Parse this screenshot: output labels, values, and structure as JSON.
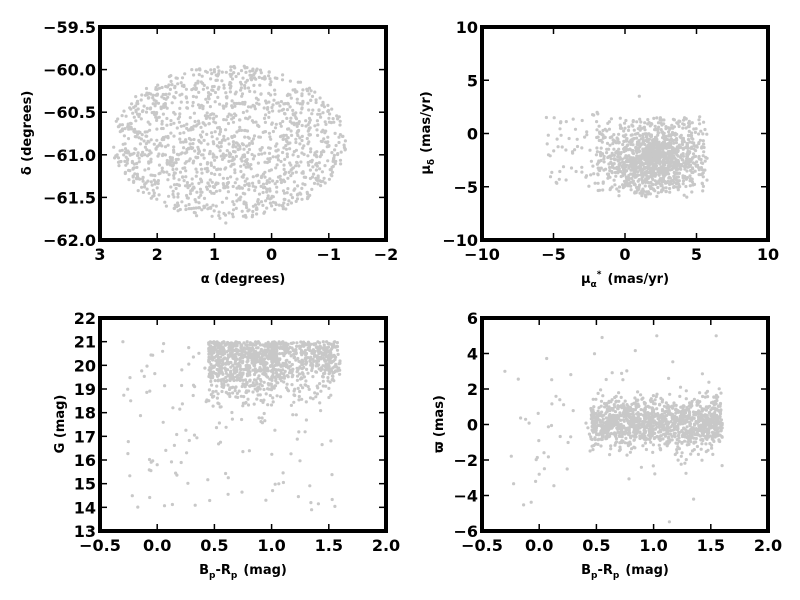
{
  "chart_data": [
    {
      "type": "scatter",
      "panel": "top-left",
      "xlabel": "α (degrees)",
      "ylabel": "δ (degrees)",
      "xlim": [
        3,
        -2
      ],
      "ylim": [
        -62.0,
        -59.5
      ],
      "xticks": [
        3,
        2,
        1,
        0,
        -1,
        -2
      ],
      "xticklabels": [
        "3",
        "2",
        "1",
        "0",
        "−1",
        "−2"
      ],
      "yticks": [
        -62.0,
        -61.5,
        -61.0,
        -60.5,
        -60.0,
        -59.5
      ],
      "yticklabels": [
        "−62.0",
        "−61.5",
        "−61.0",
        "−60.5",
        "−60.0",
        "−59.5"
      ],
      "grid": false,
      "point_color": "#c8c8c8",
      "distribution": {
        "shape": "ellipse",
        "center": [
          0.75,
          -60.85
        ],
        "radius": [
          2.05,
          0.9
        ],
        "n_points": 1400
      },
      "points": [
        [
          1.0,
          -60.0
        ],
        [
          0.5,
          -60.1
        ],
        [
          2.0,
          -60.3
        ],
        [
          -0.5,
          -60.4
        ],
        [
          2.5,
          -60.7
        ],
        [
          -1.0,
          -60.9
        ],
        [
          1.5,
          -61.6
        ],
        [
          0.0,
          -61.6
        ],
        [
          0.8,
          -61.8
        ],
        [
          -0.8,
          -61.3
        ],
        [
          2.7,
          -61.0
        ],
        [
          1.2,
          -61.0
        ]
      ]
    },
    {
      "type": "scatter",
      "panel": "top-right",
      "xlabel_main": "μ",
      "xlabel_sub": "α",
      "xlabel_sup": "*",
      "xlabel_rest": "(mas/yr)",
      "ylabel_main": "μ",
      "ylabel_sub": "δ",
      "ylabel_rest": "(mas/yr)",
      "xlim": [
        -10,
        10
      ],
      "ylim": [
        -10,
        10
      ],
      "xticks": [
        -10,
        -5,
        0,
        5,
        10
      ],
      "xticklabels": [
        "−10",
        "−5",
        "0",
        "5",
        "10"
      ],
      "yticks": [
        -10,
        -5,
        0,
        5,
        10
      ],
      "yticklabels": [
        "−10",
        "−5",
        "0",
        "5",
        "10"
      ],
      "grid": false,
      "point_color": "#c8c8c8",
      "distribution": {
        "shape": "cloud",
        "x_range": [
          -5.5,
          5.8
        ],
        "y_range": [
          -6,
          5
        ],
        "dense_center": [
          2.0,
          -2.5
        ],
        "n_points": 1300
      },
      "points": [
        [
          0.0,
          0.5
        ],
        [
          2.0,
          -2.5
        ],
        [
          4.0,
          -1.0
        ],
        [
          -2.0,
          -2.0
        ],
        [
          1.0,
          3.5
        ],
        [
          5.5,
          -1.0
        ],
        [
          -4.5,
          1.0
        ],
        [
          3.0,
          -4.5
        ]
      ]
    },
    {
      "type": "scatter",
      "panel": "bottom-left",
      "xlabel_main": "B",
      "xlabel_sub1": "p",
      "xlabel_mid": "-R",
      "xlabel_sub2": "p",
      "xlabel_rest": "(mag)",
      "ylabel": "G (mag)",
      "xlim": [
        -0.5,
        2.0
      ],
      "ylim": [
        13,
        22
      ],
      "xticks": [
        -0.5,
        0.0,
        0.5,
        1.0,
        1.5,
        2.0
      ],
      "xticklabels": [
        "−0.5",
        "0.0",
        "0.5",
        "1.0",
        "1.5",
        "2.0"
      ],
      "yticks": [
        13,
        14,
        15,
        16,
        17,
        18,
        19,
        20,
        21,
        22
      ],
      "yticklabels": [
        "13",
        "14",
        "15",
        "16",
        "17",
        "18",
        "19",
        "20",
        "21",
        "22"
      ],
      "grid": false,
      "point_color": "#c8c8c8",
      "distribution": {
        "shape": "cmd",
        "x_range": [
          0.3,
          1.6
        ],
        "y_range": [
          17.5,
          21.0
        ],
        "n_points": 1300
      },
      "points": [
        [
          0.7,
          20.5
        ],
        [
          0.9,
          19.0
        ],
        [
          1.2,
          20.6
        ],
        [
          1.5,
          20.0
        ],
        [
          -0.3,
          21.0
        ],
        [
          0.0,
          15.8
        ],
        [
          0.95,
          14.3
        ],
        [
          1.35,
          13.9
        ]
      ]
    },
    {
      "type": "scatter",
      "panel": "bottom-right",
      "xlabel_main": "B",
      "xlabel_sub1": "p",
      "xlabel_mid": "-R",
      "xlabel_sub2": "p",
      "xlabel_rest": "(mag)",
      "ylabel": "ϖ (mas)",
      "xlim": [
        -0.5,
        2.0
      ],
      "ylim": [
        -6,
        6
      ],
      "xticks": [
        -0.5,
        0.0,
        0.5,
        1.0,
        1.5,
        2.0
      ],
      "xticklabels": [
        "−0.5",
        "0.0",
        "0.5",
        "1.0",
        "1.5",
        "2.0"
      ],
      "yticks": [
        -6,
        -4,
        -2,
        0,
        2,
        4,
        6
      ],
      "yticklabels": [
        "−6",
        "−4",
        "−2",
        "0",
        "2",
        "4",
        "6"
      ],
      "grid": false,
      "point_color": "#c8c8c8",
      "distribution": {
        "shape": "band",
        "x_range": [
          0.45,
          1.6
        ],
        "y_center": 0.1,
        "n_points": 1300
      },
      "points": [
        [
          0.6,
          0.2
        ],
        [
          0.9,
          0.0
        ],
        [
          1.2,
          0.4
        ],
        [
          1.5,
          0.5
        ],
        [
          -0.3,
          3.0
        ],
        [
          0.0,
          -2.8
        ],
        [
          0.55,
          4.9
        ],
        [
          1.35,
          -4.2
        ]
      ]
    }
  ]
}
